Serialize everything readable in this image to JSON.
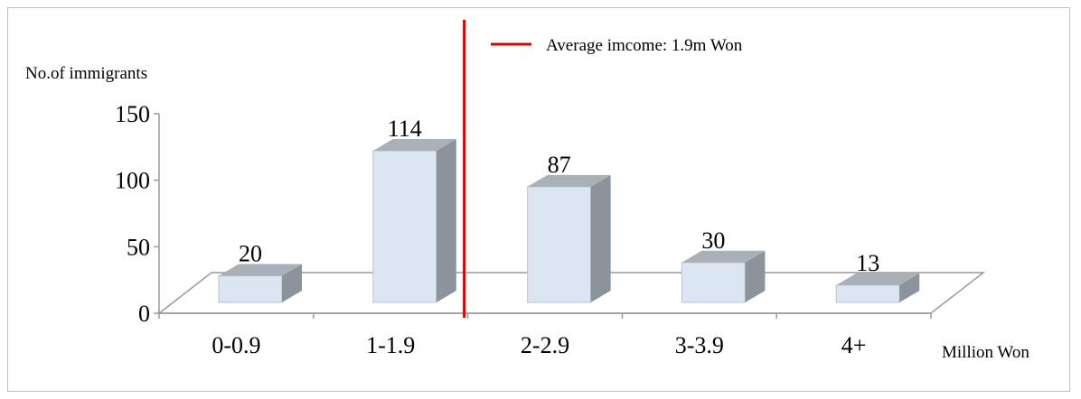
{
  "chart_data": {
    "type": "bar",
    "ylabel": "No.of immigrants",
    "xlabel": "Million Won",
    "categories": [
      "0-0.9",
      "1-1.9",
      "2-2.9",
      "3-3.9",
      "4+"
    ],
    "values": [
      20,
      114,
      87,
      30,
      13
    ],
    "ylim": [
      0,
      150
    ],
    "yticks": [
      0,
      50,
      100,
      150
    ],
    "reference_line": {
      "label": "Average imcome: 1.9m Won",
      "color": "#e00000"
    },
    "bar_color": "#dce6f2",
    "bar_side_color": "#8c939a",
    "bar_top_color": "#a9b0b7",
    "grid": false
  }
}
